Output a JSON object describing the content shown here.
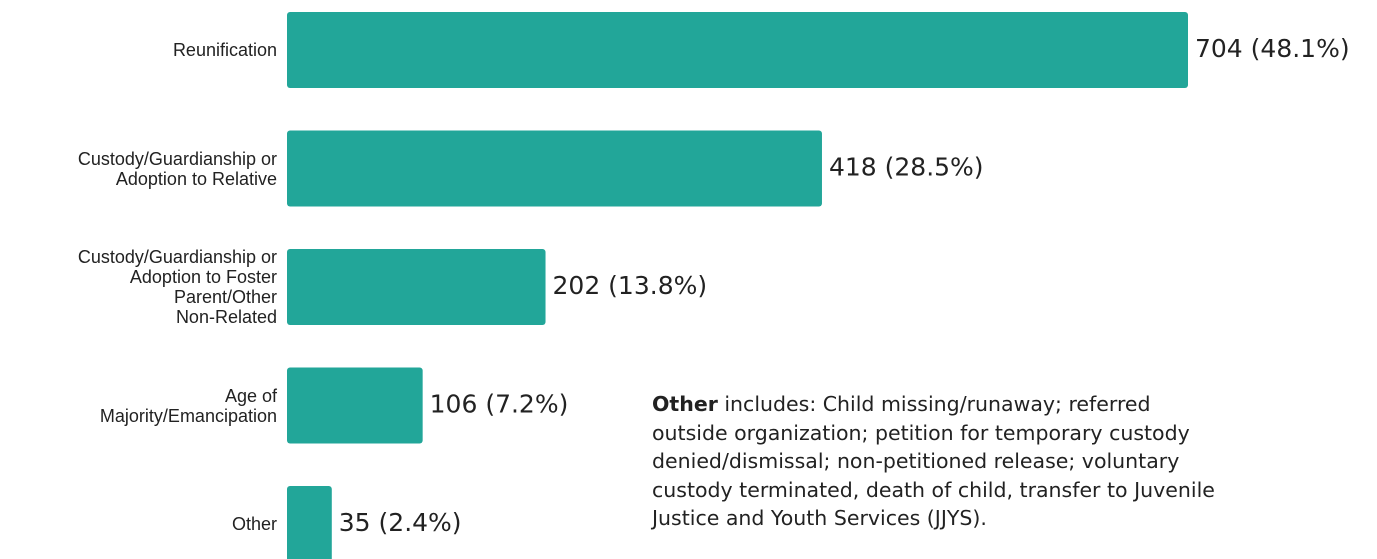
{
  "chart_data": {
    "type": "barh",
    "categories": [
      "Reunification",
      "Custody/Guardianship or\nAdoption to Relative",
      "Custody/Guardianship or\nAdoption to Foster\nParent/Other\nNon-Related",
      "Age of\nMajority/Emancipation",
      "Other"
    ],
    "values": [
      704,
      418,
      202,
      106,
      35
    ],
    "value_labels": [
      "704 (48.1%)",
      "418 (28.5%)",
      "202 (13.8%)",
      "106 (7.2%)",
      "35 (2.4%)"
    ],
    "color": "#22a699",
    "xlim": [
      0,
      704
    ],
    "annotation": {
      "bold": "Other",
      "text": " includes: Child missing/runaway; referred\noutside organization; petition for temporary custody\ndenied/dismissal; non-petitioned release; voluntary\ncustody terminated, death of child, transfer to Juvenile\nJustice and Youth Services (JJYS)."
    }
  }
}
